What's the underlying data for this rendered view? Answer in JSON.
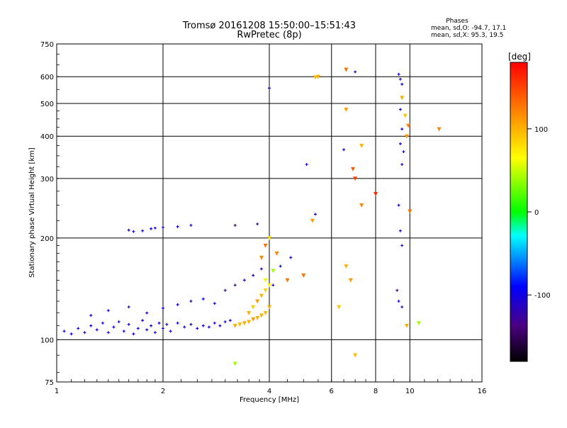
{
  "title": {
    "line1": "Tromsø 20161208 15:50:00–15:51:43",
    "line2": "RwPretec (8p)"
  },
  "stats": {
    "heading": "Phases",
    "line_o": "mean, sd,O: -94.7, 17.1",
    "line_x": "mean, sd,X:  95.3, 19.5"
  },
  "colors": {
    "accent_scale": "rainbow",
    "grid": "#000000",
    "background": "#ffffff"
  },
  "chart_data": {
    "type": "scatter",
    "title": "Tromsø 20161208 15:50:00–15:51:43",
    "subtitle": "RwPretec (8p)",
    "xlabel": "Frequency [MHz]",
    "ylabel": "Stationary phase Virtual Height [km]",
    "x_scale": "log2",
    "y_scale": "log",
    "xlim": [
      1,
      16
    ],
    "ylim": [
      75,
      750
    ],
    "x_ticks": [
      1,
      2,
      4,
      6,
      8,
      10,
      16
    ],
    "x_tick_labels": [
      "1",
      "2",
      "4",
      "6",
      "8",
      "10",
      "16"
    ],
    "y_ticks": [
      75,
      100,
      200,
      300,
      400,
      500,
      600,
      750
    ],
    "y_tick_labels": [
      "75",
      "100",
      "200",
      "300",
      "400",
      "500",
      "600",
      "750"
    ],
    "grid": true,
    "colorbar": {
      "label": "[deg]",
      "range": [
        -180,
        180
      ],
      "ticks": [
        100,
        0,
        -100
      ],
      "tick_labels": [
        "100",
        "0",
        "-100"
      ],
      "placement": "right"
    },
    "series": [
      {
        "mode": "O",
        "points": [
          [
            1.05,
            106,
            -100
          ],
          [
            1.1,
            104,
            -105
          ],
          [
            1.15,
            108,
            -98
          ],
          [
            1.2,
            105,
            -102
          ],
          [
            1.25,
            110,
            -95
          ],
          [
            1.3,
            107,
            -110
          ],
          [
            1.35,
            112,
            -100
          ],
          [
            1.4,
            105,
            -104
          ],
          [
            1.45,
            109,
            -96
          ],
          [
            1.5,
            113,
            -108
          ],
          [
            1.55,
            106,
            -101
          ],
          [
            1.6,
            111,
            -97
          ],
          [
            1.65,
            104,
            -103
          ],
          [
            1.7,
            108,
            -99
          ],
          [
            1.75,
            114,
            -105
          ],
          [
            1.8,
            107,
            -100
          ],
          [
            1.85,
            110,
            -94
          ],
          [
            1.9,
            105,
            -106
          ],
          [
            1.95,
            112,
            -102
          ],
          [
            2.0,
            108,
            -98
          ],
          [
            2.05,
            111,
            -104
          ],
          [
            2.1,
            106,
            -100
          ],
          [
            2.2,
            112,
            -96
          ],
          [
            2.3,
            109,
            -107
          ],
          [
            2.4,
            111,
            -101
          ],
          [
            2.5,
            108,
            -99
          ],
          [
            2.6,
            110,
            -103
          ],
          [
            2.7,
            109,
            -97
          ],
          [
            2.8,
            112,
            -105
          ],
          [
            2.9,
            110,
            -100
          ],
          [
            3.0,
            113,
            -95
          ],
          [
            3.1,
            114,
            -110
          ],
          [
            1.25,
            118,
            -100
          ],
          [
            1.4,
            122,
            -95
          ],
          [
            1.6,
            125,
            -108
          ],
          [
            1.8,
            120,
            -102
          ],
          [
            2.0,
            124,
            -97
          ],
          [
            2.2,
            127,
            -104
          ],
          [
            2.4,
            130,
            -100
          ],
          [
            2.6,
            132,
            -92
          ],
          [
            2.8,
            128,
            -115
          ],
          [
            3.0,
            140,
            -120
          ],
          [
            3.2,
            145,
            -125
          ],
          [
            3.4,
            150,
            -118
          ],
          [
            3.6,
            155,
            -112
          ],
          [
            3.8,
            162,
            -120
          ],
          [
            1.6,
            211,
            -100
          ],
          [
            1.65,
            209,
            -102
          ],
          [
            1.75,
            210,
            -98
          ],
          [
            1.85,
            213,
            -95
          ],
          [
            1.9,
            214,
            -100
          ],
          [
            2.0,
            215,
            -105
          ],
          [
            2.2,
            216,
            -96
          ],
          [
            2.4,
            218,
            -102
          ],
          [
            3.2,
            218,
            -140
          ],
          [
            3.7,
            220,
            -130
          ],
          [
            4.1,
            145,
            -100
          ],
          [
            4.3,
            165,
            -95
          ],
          [
            4.6,
            175,
            -105
          ],
          [
            5.1,
            330,
            -100
          ],
          [
            5.4,
            235,
            -110
          ],
          [
            4.0,
            555,
            -102
          ],
          [
            6.5,
            365,
            -98
          ],
          [
            7.0,
            620,
            -100
          ],
          [
            9.3,
            610,
            -100
          ],
          [
            9.4,
            590,
            -110
          ],
          [
            9.5,
            570,
            -96
          ],
          [
            9.4,
            480,
            -104
          ],
          [
            9.5,
            420,
            -100
          ],
          [
            9.4,
            380,
            -108
          ],
          [
            9.6,
            360,
            -95
          ],
          [
            9.5,
            330,
            -102
          ],
          [
            9.3,
            250,
            -100
          ],
          [
            9.4,
            210,
            -99
          ],
          [
            9.5,
            190,
            -104
          ],
          [
            9.3,
            130,
            -100
          ],
          [
            9.5,
            125,
            -110
          ],
          [
            9.2,
            140,
            -140
          ]
        ]
      },
      {
        "mode": "X",
        "points": [
          [
            3.2,
            110,
            100
          ],
          [
            3.3,
            111,
            95
          ],
          [
            3.4,
            112,
            105
          ],
          [
            3.5,
            113,
            100
          ],
          [
            3.6,
            115,
            110
          ],
          [
            3.7,
            116,
            98
          ],
          [
            3.8,
            118,
            102
          ],
          [
            3.9,
            120,
            95
          ],
          [
            4.0,
            125,
            105
          ],
          [
            3.5,
            120,
            100
          ],
          [
            3.6,
            125,
            90
          ],
          [
            3.7,
            130,
            110
          ],
          [
            3.8,
            135,
            100
          ],
          [
            3.9,
            140,
            85
          ],
          [
            4.0,
            145,
            70
          ],
          [
            3.9,
            150,
            60
          ],
          [
            4.1,
            160,
            40
          ],
          [
            3.8,
            175,
            120
          ],
          [
            3.9,
            190,
            130
          ],
          [
            4.0,
            200,
            80
          ],
          [
            3.2,
            85,
            40
          ],
          [
            5.5,
            600,
            100
          ],
          [
            5.4,
            598,
            95
          ],
          [
            5.3,
            225,
            110
          ],
          [
            4.2,
            180,
            120
          ],
          [
            4.5,
            150,
            125
          ],
          [
            5.0,
            155,
            130
          ],
          [
            6.6,
            480,
            110
          ],
          [
            6.6,
            630,
            130
          ],
          [
            6.9,
            320,
            140
          ],
          [
            7.0,
            300,
            150
          ],
          [
            7.3,
            250,
            120
          ],
          [
            7.3,
            375,
            100
          ],
          [
            8.0,
            270,
            160
          ],
          [
            6.3,
            125,
            90
          ],
          [
            6.6,
            165,
            100
          ],
          [
            6.8,
            150,
            110
          ],
          [
            7.0,
            90,
            95
          ],
          [
            9.5,
            520,
            100
          ],
          [
            9.7,
            460,
            90
          ],
          [
            9.8,
            400,
            110
          ],
          [
            9.9,
            430,
            120
          ],
          [
            10.0,
            240,
            130
          ],
          [
            9.8,
            110,
            100
          ],
          [
            10.6,
            112,
            40
          ],
          [
            12.1,
            420,
            120
          ]
        ]
      }
    ],
    "legend": null
  }
}
